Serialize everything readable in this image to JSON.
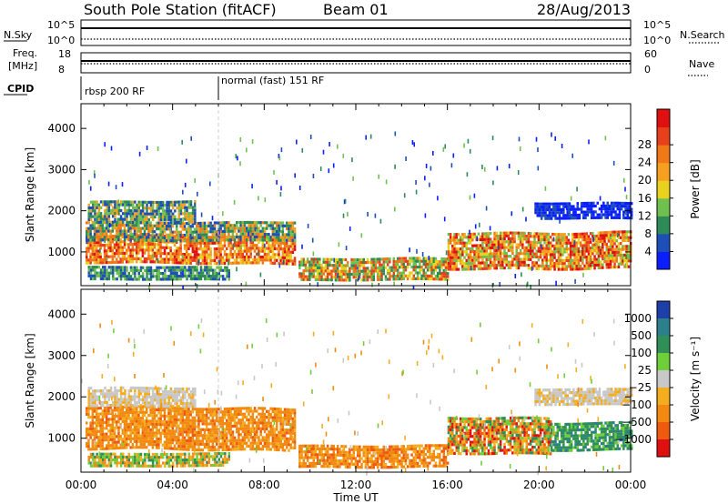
{
  "header": {
    "station": "South Pole Station (fitACF)",
    "beam": "Beam 01",
    "date": "28/Aug/2013"
  },
  "top_panels": {
    "nsky_label": "N.Sky",
    "nsky_ticks": [
      "10^5",
      "10^0"
    ],
    "nsky_right_ticks": [
      "10^5",
      "10^0"
    ],
    "nsearch_label": "N.Search",
    "freq_label_1": "Freq.",
    "freq_label_2": "[MHz]",
    "freq_ticks": [
      "18",
      "8"
    ],
    "nave_ticks": [
      "60",
      "0"
    ],
    "nave_label": "Nave",
    "cpid_label": "CPID",
    "cpid_segments": [
      {
        "label": "rbsp 200 RF",
        "start_hour": 0
      },
      {
        "label": "normal (fast) 151 RF",
        "start_hour": 6.0
      }
    ]
  },
  "chart_data": [
    {
      "type": "heatmap",
      "name": "power",
      "ylabel": "Slant Range [km]",
      "xlabel": "",
      "ylim": [
        180,
        4600
      ],
      "xlim_hours": [
        0,
        24
      ],
      "y_ticks": [
        "1000",
        "2000",
        "3000",
        "4000"
      ],
      "y_tick_values": [
        1000,
        2000,
        3000,
        4000
      ],
      "colorbar_label": "Power [dB]",
      "colorbar_ticks": [
        "4",
        "8",
        "12",
        "16",
        "20",
        "24",
        "28"
      ],
      "colorbar_colors": [
        "#0a1eff",
        "#1e4fb8",
        "#2e8b57",
        "#70c050",
        "#e8d21e",
        "#f5a020",
        "#f07818",
        "#e8401c",
        "#e01010"
      ],
      "bands": [
        {
          "t0": 0.2,
          "t1": 9.3,
          "r0": 750,
          "r1": 1400,
          "palette": [
            5,
            6,
            7,
            8,
            6,
            4
          ]
        },
        {
          "t0": 0.2,
          "t1": 9.3,
          "r0": 1300,
          "r1": 1750,
          "palette": [
            2,
            3,
            5,
            6,
            1
          ]
        },
        {
          "t0": 0.3,
          "t1": 5.0,
          "r0": 1750,
          "r1": 2250,
          "palette": [
            1,
            2,
            3,
            5
          ]
        },
        {
          "t0": 0.3,
          "t1": 6.5,
          "r0": 350,
          "r1": 650,
          "palette": [
            1,
            2,
            3
          ]
        },
        {
          "t0": 9.5,
          "t1": 16.0,
          "r0": 320,
          "r1": 850,
          "palette": [
            2,
            3,
            4,
            6,
            7
          ]
        },
        {
          "t0": 16.0,
          "t1": 24.0,
          "r0": 600,
          "r1": 1500,
          "palette": [
            3,
            5,
            6,
            7,
            8,
            4
          ]
        },
        {
          "t0": 19.8,
          "t1": 24.0,
          "r0": 1800,
          "r1": 2200,
          "palette": [
            0,
            1,
            0
          ]
        }
      ]
    },
    {
      "type": "heatmap",
      "name": "velocity",
      "ylabel": "Slant Range [km]",
      "xlabel": "Time UT",
      "ylim": [
        180,
        4600
      ],
      "xlim_hours": [
        0,
        24
      ],
      "y_ticks": [
        "1000",
        "2000",
        "3000",
        "4000"
      ],
      "y_tick_values": [
        1000,
        2000,
        3000,
        4000
      ],
      "x_ticks": [
        "00:00",
        "04:00",
        "08:00",
        "12:00",
        "16:00",
        "20:00",
        "00:00"
      ],
      "colorbar_label": "Velocity [m s⁻¹]",
      "colorbar_ticks": [
        "1000",
        "500",
        "100",
        "25",
        "−25",
        "−100",
        "−500",
        "−1000"
      ],
      "colorbar_colors": [
        "#1f3fa8",
        "#2e7f8c",
        "#2f8f56",
        "#6fcf3a",
        "#c8c8c8",
        "#f3ad1e",
        "#f28a12",
        "#ee5a10",
        "#e01010"
      ],
      "bands": [
        {
          "t0": 0.2,
          "t1": 9.3,
          "r0": 750,
          "r1": 1750,
          "palette": [
            6,
            6,
            5,
            7,
            6,
            6
          ]
        },
        {
          "t0": 0.3,
          "t1": 5.0,
          "r0": 1800,
          "r1": 2250,
          "palette": [
            4,
            5,
            4
          ]
        },
        {
          "t0": 0.3,
          "t1": 6.5,
          "r0": 350,
          "r1": 650,
          "palette": [
            5,
            6,
            3,
            2
          ]
        },
        {
          "t0": 9.5,
          "t1": 16.0,
          "r0": 320,
          "r1": 850,
          "palette": [
            6,
            5,
            6,
            7
          ]
        },
        {
          "t0": 16.0,
          "t1": 20.5,
          "r0": 600,
          "r1": 1500,
          "palette": [
            6,
            7,
            5,
            8,
            3,
            2
          ]
        },
        {
          "t0": 20.5,
          "t1": 24.0,
          "r0": 750,
          "r1": 1400,
          "palette": [
            2,
            3,
            2,
            1
          ]
        },
        {
          "t0": 19.8,
          "t1": 24.0,
          "r0": 1800,
          "r1": 2200,
          "palette": [
            4,
            4,
            5
          ]
        }
      ]
    }
  ]
}
